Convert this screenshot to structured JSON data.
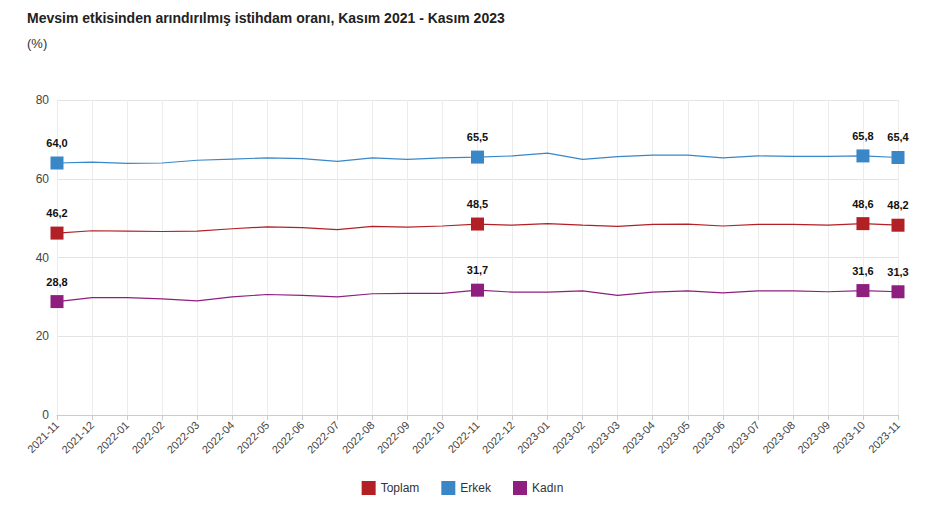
{
  "chart_data": {
    "type": "line",
    "title": "Mevsim etkisinden arındırılmış istihdam oranı, Kasım 2021 - Kasım 2023",
    "subtitle": "(%)",
    "categories": [
      "2021-11",
      "2021-12",
      "2022-01",
      "2022-02",
      "2022-03",
      "2022-04",
      "2022-05",
      "2022-06",
      "2022-07",
      "2022-08",
      "2022-09",
      "2022-10",
      "2022-11",
      "2022-12",
      "2023-01",
      "2023-02",
      "2023-03",
      "2023-04",
      "2023-05",
      "2023-06",
      "2023-07",
      "2023-08",
      "2023-09",
      "2023-10",
      "2023-11"
    ],
    "series": [
      {
        "name": "Toplam",
        "color": "#b22025",
        "marker": "square",
        "values": [
          46.2,
          46.8,
          46.7,
          46.6,
          46.7,
          47.3,
          47.8,
          47.6,
          47.1,
          47.9,
          47.7,
          48.0,
          48.5,
          48.2,
          48.6,
          48.2,
          47.9,
          48.4,
          48.5,
          48.0,
          48.4,
          48.4,
          48.2,
          48.6,
          48.2
        ],
        "value_labels": [
          "46,2",
          null,
          null,
          null,
          null,
          null,
          null,
          null,
          null,
          null,
          null,
          null,
          "48,5",
          null,
          null,
          null,
          null,
          null,
          null,
          null,
          null,
          null,
          null,
          "48,6",
          "48,2"
        ]
      },
      {
        "name": "Erkek",
        "color": "#3a87c8",
        "marker": "square",
        "values": [
          64.0,
          64.2,
          63.9,
          64.0,
          64.7,
          65.0,
          65.3,
          65.1,
          64.4,
          65.3,
          64.9,
          65.3,
          65.5,
          65.8,
          66.5,
          64.9,
          65.6,
          66.0,
          66.0,
          65.3,
          65.8,
          65.7,
          65.7,
          65.8,
          65.4
        ],
        "value_labels": [
          "64,0",
          null,
          null,
          null,
          null,
          null,
          null,
          null,
          null,
          null,
          null,
          null,
          "65,5",
          null,
          null,
          null,
          null,
          null,
          null,
          null,
          null,
          null,
          null,
          "65,8",
          "65,4"
        ]
      },
      {
        "name": "Kadın",
        "color": "#8e1f7f",
        "marker": "square",
        "values": [
          28.8,
          29.8,
          29.8,
          29.5,
          29.0,
          30.0,
          30.6,
          30.4,
          30.0,
          30.8,
          30.9,
          30.9,
          31.7,
          31.2,
          31.2,
          31.5,
          30.4,
          31.2,
          31.5,
          31.0,
          31.5,
          31.5,
          31.3,
          31.6,
          31.3
        ],
        "value_labels": [
          "28,8",
          null,
          null,
          null,
          null,
          null,
          null,
          null,
          null,
          null,
          null,
          null,
          "31,7",
          null,
          null,
          null,
          null,
          null,
          null,
          null,
          null,
          null,
          null,
          "31,6",
          "31,3"
        ]
      }
    ],
    "ylim": [
      0,
      80
    ],
    "yticks": [
      0,
      20,
      40,
      60,
      80
    ],
    "grid": true,
    "legend": "bottom",
    "data_labels": true
  }
}
